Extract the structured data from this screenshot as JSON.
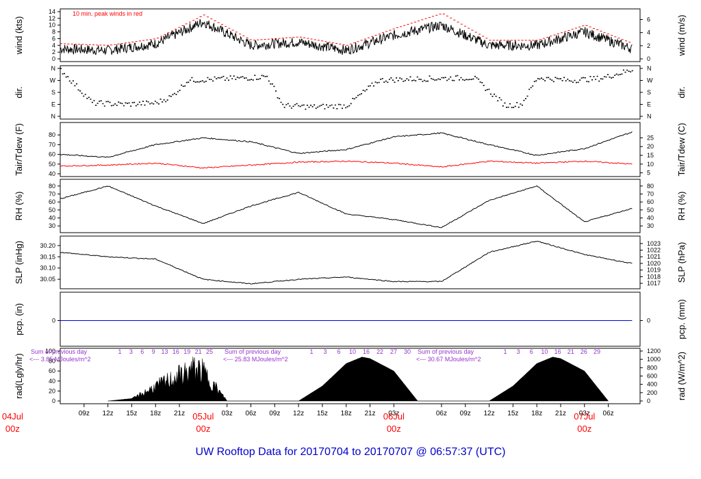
{
  "chart_data": {
    "type": "line",
    "title": "UW Rooftop Data for 20170704  to  20170707 @ 06:57:37  (UTC)",
    "x_range_hours_utc": [
      "2017-07-04 06:00",
      "2017-07-07 07:00"
    ],
    "x_tick_labels": [
      "09z",
      "12z",
      "15z",
      "18z",
      "21z",
      "03z",
      "06z",
      "09z",
      "12z",
      "15z",
      "18z",
      "21z",
      "03z",
      "06z",
      "09z",
      "12z",
      "15z",
      "18z",
      "21z",
      "03z",
      "06z"
    ],
    "date_labels": [
      {
        "day": "04Jul",
        "hour": "00z"
      },
      {
        "day": "05Jul",
        "hour": "00z"
      },
      {
        "day": "06Jul",
        "hour": "00z"
      },
      {
        "day": "07Jul",
        "hour": "00z"
      }
    ],
    "panels": [
      {
        "id": "wind",
        "ylabel_left": "wind (kts)",
        "ylabel_right": "wind (m/s)",
        "ylim": [
          0,
          14
        ],
        "left_ticks": [
          "0",
          "2",
          "4",
          "6",
          "8",
          "10",
          "12",
          "14"
        ],
        "right_ticks": [
          "0",
          "2",
          "4",
          "6"
        ],
        "annotation": "10 min. peak winds in red",
        "series": [
          {
            "name": "wind",
            "x_hours": [
              0,
              6,
              12,
              18,
              24,
              30,
              36,
              42,
              48,
              54,
              60,
              66,
              72
            ],
            "values": [
              3,
              2.5,
              4.5,
              11,
              4,
              5,
              2.5,
              7,
              10,
              4,
              4,
              8,
              3
            ]
          },
          {
            "name": "10 min. peak winds",
            "color": "#ff0000",
            "x_hours": [
              0,
              6,
              12,
              18,
              24,
              30,
              36,
              42,
              48,
              54,
              60,
              66,
              72
            ],
            "values": [
              4.5,
              4,
              6,
              13,
              5.5,
              6.5,
              4,
              9,
              13.5,
              5.5,
              5.5,
              10,
              4.5
            ]
          }
        ]
      },
      {
        "id": "dir",
        "ylabel_left": "dir.",
        "ylabel_right": "dir.",
        "left_ticks": [
          "N",
          "E",
          "S",
          "W",
          "N"
        ],
        "right_ticks": [
          "N",
          "E",
          "S",
          "W",
          "N"
        ],
        "series": [
          {
            "name": "direction_deg",
            "x_hours": [
              0,
              4,
              8,
              12,
              14,
              16,
              20,
              24,
              26,
              28,
              32,
              36,
              40,
              44,
              48,
              52,
              56,
              58,
              60,
              64,
              68,
              72
            ],
            "values": [
              350,
              100,
              90,
              100,
              150,
              270,
              280,
              290,
              300,
              80,
              70,
              80,
              270,
              280,
              285,
              290,
              80,
              90,
              290,
              270,
              285,
              350
            ]
          }
        ]
      },
      {
        "id": "temp",
        "ylabel_left": "Tair/Tdew (F)",
        "ylabel_right": "Tair/Tdew (C)",
        "ylim": [
          40,
          90
        ],
        "left_ticks": [
          "40",
          "50",
          "60",
          "70",
          "80"
        ],
        "right_ticks": [
          "5",
          "10",
          "15",
          "20",
          "25"
        ],
        "series": [
          {
            "name": "Tair",
            "color": "#000000",
            "x_hours": [
              0,
              6,
              12,
              18,
              24,
              30,
              36,
              42,
              48,
              54,
              60,
              66,
              72
            ],
            "values": [
              60,
              57,
              70,
              77,
              73,
              61,
              65,
              78,
              82,
              70,
              59,
              66,
              83
            ]
          },
          {
            "name": "Tdew",
            "color": "#ff0000",
            "x_hours": [
              0,
              6,
              12,
              18,
              24,
              30,
              36,
              42,
              48,
              54,
              60,
              66,
              72
            ],
            "values": [
              48,
              49,
              51,
              46,
              49,
              52,
              53,
              51,
              47,
              53,
              51,
              53,
              50
            ]
          }
        ]
      },
      {
        "id": "rh",
        "ylabel_left": "RH (%)",
        "ylabel_right": "RH (%)",
        "ylim": [
          25,
          85
        ],
        "left_ticks": [
          "30",
          "40",
          "50",
          "60",
          "70",
          "80"
        ],
        "right_ticks": [
          "30",
          "40",
          "50",
          "60",
          "70",
          "80"
        ],
        "series": [
          {
            "name": "RH",
            "x_hours": [
              0,
              6,
              12,
              18,
              24,
              30,
              36,
              42,
              48,
              54,
              60,
              66,
              72
            ],
            "values": [
              64,
              80,
              55,
              33,
              55,
              72,
              45,
              38,
              28,
              62,
              80,
              35,
              52
            ]
          }
        ]
      },
      {
        "id": "slp",
        "ylabel_left": "SLP (inHg)",
        "ylabel_right": "SLP (hPa)",
        "ylim": [
          30.02,
          30.23
        ],
        "left_ticks": [
          "30.05",
          "30.10",
          "30.15",
          "30.20"
        ],
        "right_ticks": [
          "1017",
          "1018",
          "1019",
          "1020",
          "1021",
          "1022",
          "1023"
        ],
        "series": [
          {
            "name": "SLP",
            "x_hours": [
              0,
              6,
              12,
              18,
              24,
              30,
              36,
              42,
              48,
              54,
              60,
              66,
              72
            ],
            "values": [
              30.17,
              30.15,
              30.14,
              30.05,
              30.03,
              30.05,
              30.06,
              30.04,
              30.04,
              30.17,
              30.22,
              30.16,
              30.12
            ]
          }
        ]
      },
      {
        "id": "pcp",
        "ylabel_left": "pcp. (in)",
        "ylabel_right": "pcp. (mm)",
        "left_ticks": [
          "0"
        ],
        "right_ticks": [
          "0"
        ],
        "series": [
          {
            "name": "precipitation",
            "color": "#0000cc",
            "x_hours": [
              0,
              72
            ],
            "values": [
              0,
              0
            ]
          }
        ]
      },
      {
        "id": "rad",
        "ylabel_left": "rad(Lgly/hr)",
        "ylabel_right": "rad (W/m^2)",
        "ylim": [
          0,
          100
        ],
        "left_ticks": [
          "0",
          "20",
          "40",
          "60",
          "80",
          "100"
        ],
        "right_ticks": [
          "0",
          "200",
          "400",
          "600",
          "800",
          "1000",
          "1200"
        ],
        "day_sums": [
          {
            "line1": "Sum of previous day",
            "line2": "<--- 3.85 MJoules/m^2"
          },
          {
            "line1": "Sum of previous day",
            "line2": "<--- 25.83 MJoules/m^2"
          },
          {
            "line1": "Sum of previous day",
            "line2": "<--- 30.67 MJoules/m^2"
          }
        ],
        "day_ticks": [
          [
            "1",
            "3",
            "6",
            "9",
            "13",
            "16",
            "19",
            "21",
            "25"
          ],
          [
            "1",
            "3",
            "6",
            "10",
            "16",
            "22",
            "27",
            "30"
          ],
          [
            "1",
            "3",
            "6",
            "10",
            "16",
            "21",
            "26",
            "29"
          ]
        ],
        "series": [
          {
            "name": "solar radiation",
            "x_hours": [
              6,
              9,
              12,
              15,
              17,
              18,
              21,
              30,
              33,
              36,
              38,
              39,
              42,
              45,
              54,
              57,
              60,
              62,
              63,
              66,
              69
            ],
            "values": [
              0,
              5,
              40,
              70,
              90,
              80,
              0,
              0,
              30,
              75,
              88,
              85,
              60,
              0,
              0,
              30,
              75,
              88,
              85,
              60,
              0
            ]
          }
        ]
      }
    ]
  }
}
